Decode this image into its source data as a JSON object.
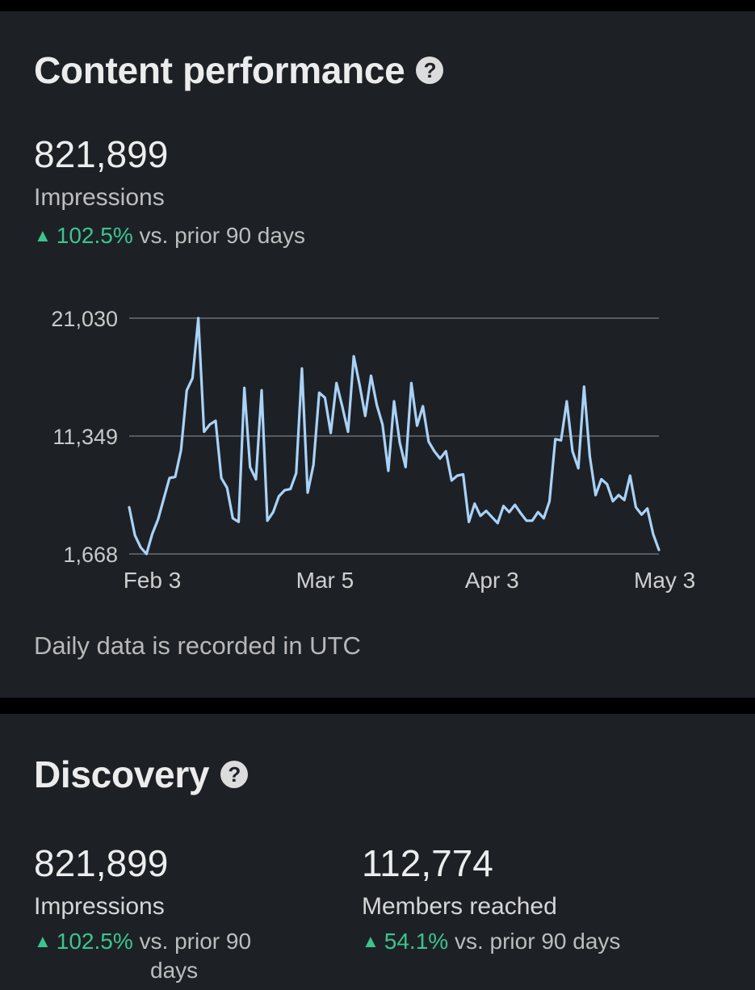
{
  "content_performance": {
    "title": "Content performance",
    "impressions_value": "821,899",
    "impressions_label": "Impressions",
    "change_pct": "102.5%",
    "change_suffix": "vs. prior 90 days",
    "footnote": "Daily data is recorded in UTC"
  },
  "discovery": {
    "title": "Discovery",
    "impressions_value": "821,899",
    "impressions_label": "Impressions",
    "impressions_change_pct": "102.5%",
    "impressions_change_suffix_line1": "vs. prior 90",
    "impressions_change_suffix_line2": "days",
    "members_value": "112,774",
    "members_label": "Members reached",
    "members_change_pct": "54.1%",
    "members_change_suffix": "vs. prior 90 days"
  },
  "icons": {
    "help": "help-circle-icon",
    "trend": "triangle-up-icon"
  },
  "colors": {
    "line": "#a9d2f7",
    "positive": "#3cc48f",
    "card": "#1d2126"
  },
  "chart_data": {
    "type": "line",
    "ylim": [
      1668,
      21030
    ],
    "yticks": [
      "21,030",
      "11,349",
      "1,668"
    ],
    "ytick_values": [
      21030,
      11349,
      1668
    ],
    "xticks": [
      "Feb 3",
      "Mar 5",
      "Apr 3",
      "May 3"
    ],
    "xtick_index": [
      4,
      34,
      63,
      93
    ],
    "grid": true,
    "series": [
      {
        "values": [
          5500,
          3200,
          2200,
          1668,
          3300,
          4500,
          6200,
          7900,
          8000,
          10200,
          15100,
          16100,
          21030,
          11700,
          12300,
          12600,
          7900,
          7100,
          4600,
          4300,
          15300,
          8800,
          7800,
          15100,
          4400,
          5100,
          6400,
          6900,
          7000,
          8300,
          16900,
          6700,
          9000,
          14900,
          14500,
          11600,
          15700,
          13800,
          11700,
          17900,
          15600,
          13000,
          16300,
          13900,
          12300,
          8500,
          14200,
          10800,
          8800,
          15700,
          12200,
          13800,
          10900,
          10100,
          9500,
          10100,
          7700,
          8100,
          8200,
          4300,
          5800,
          4800,
          5200,
          4700,
          4200,
          5600,
          5100,
          5700,
          5000,
          4400,
          4400,
          5100,
          4600,
          6000,
          11100,
          11000,
          14200,
          10100,
          8700,
          15400,
          9700,
          6500,
          7800,
          7400,
          6000,
          6500,
          6100,
          8100,
          5500,
          4900,
          5400,
          3300,
          2000
        ]
      }
    ]
  }
}
